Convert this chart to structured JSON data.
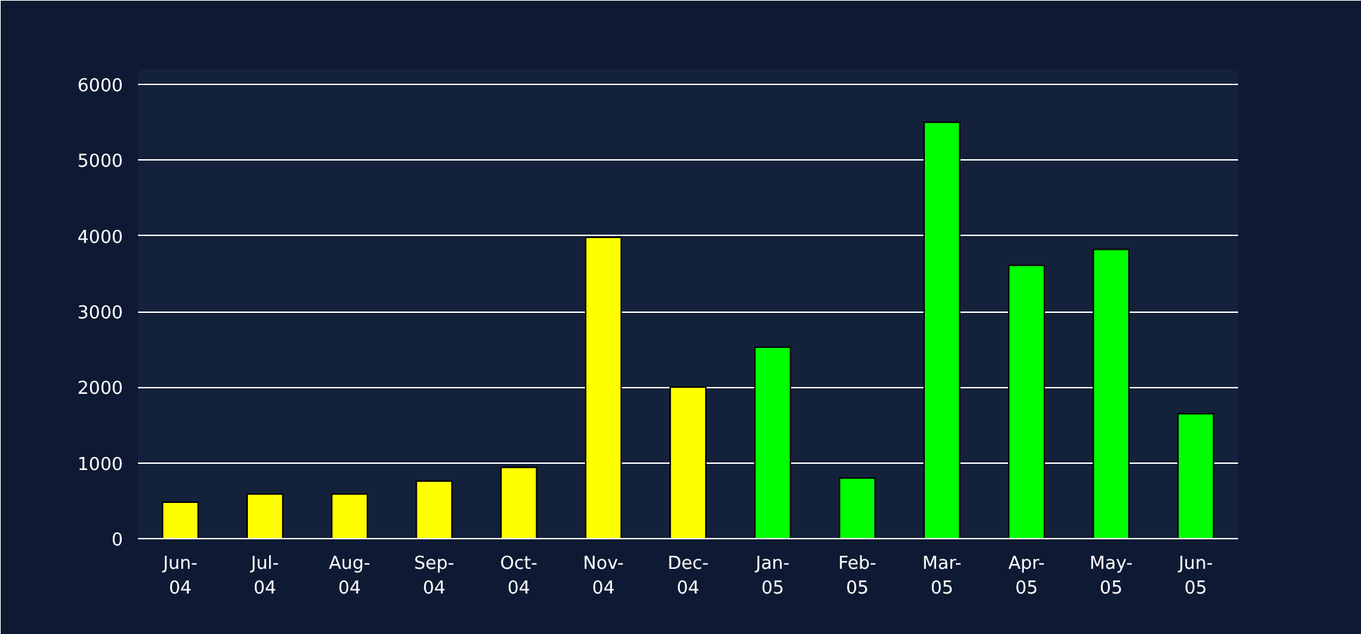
{
  "chart_data": {
    "type": "bar",
    "categories": [
      "Jun-04",
      "Jul-04",
      "Aug-04",
      "Sep-04",
      "Oct-04",
      "Nov-04",
      "Dec-04",
      "Jan-05",
      "Feb-05",
      "Mar-05",
      "Apr-05",
      "May-05",
      "Jun-05"
    ],
    "values": [
      480,
      590,
      590,
      760,
      940,
      3980,
      2000,
      2530,
      800,
      5500,
      3610,
      3820,
      1650
    ],
    "colors": [
      "#ffff00",
      "#ffff00",
      "#ffff00",
      "#ffff00",
      "#ffff00",
      "#ffff00",
      "#ffff00",
      "#00ff00",
      "#00ff00",
      "#00ff00",
      "#00ff00",
      "#00ff00",
      "#00ff00"
    ],
    "ylim": [
      0,
      6200
    ],
    "yticks": [
      0,
      1000,
      2000,
      3000,
      4000,
      5000,
      6000
    ],
    "grid": "y"
  }
}
